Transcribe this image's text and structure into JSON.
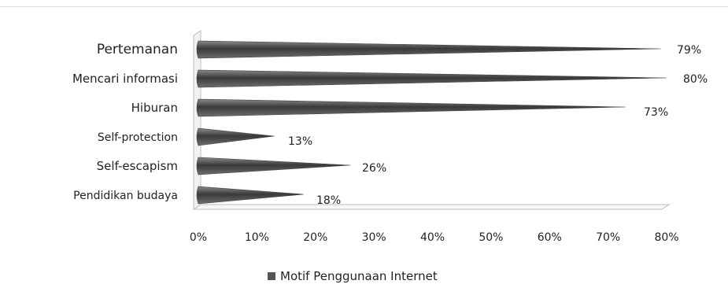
{
  "chart_data": {
    "type": "bar",
    "orientation": "horizontal",
    "categories": [
      "Pertemanan",
      "Mencari informasi",
      "Hiburan",
      "Self-protection",
      "Self-escapism",
      "Pendidikan budaya"
    ],
    "series": [
      {
        "name": "Motif Penggunaan Internet",
        "values": [
          79,
          80,
          73,
          13,
          26,
          18
        ]
      }
    ],
    "data_labels": [
      "79%",
      "80%",
      "73%",
      "13%",
      "26%",
      "18%"
    ],
    "x_ticks": [
      "0%",
      "10%",
      "20%",
      "30%",
      "40%",
      "50%",
      "60%",
      "70%",
      "80%"
    ],
    "xlim": [
      0,
      80
    ],
    "grid": false,
    "legend_position": "bottom",
    "bar_style": "3d-cone",
    "bar_color": "#555555"
  }
}
